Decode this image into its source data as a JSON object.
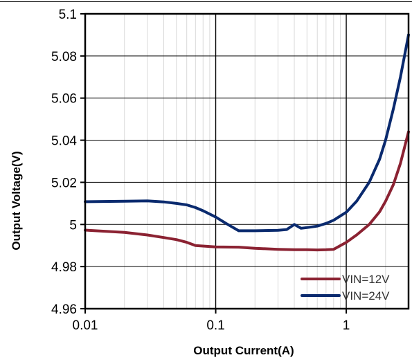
{
  "chart_data": {
    "type": "line",
    "title": "",
    "xlabel": "Output Current(A)",
    "ylabel": "Output Voltage(V)",
    "x_scale": "log",
    "xlim": [
      0.01,
      3
    ],
    "ylim": [
      4.96,
      5.1
    ],
    "x_ticks": [
      0.01,
      0.1,
      1
    ],
    "x_tick_labels": [
      "0.01",
      "0.1",
      "1"
    ],
    "y_ticks": [
      4.96,
      4.98,
      5.0,
      5.02,
      5.04,
      5.06,
      5.08,
      5.1
    ],
    "y_tick_labels": [
      "4.96",
      "4.98",
      "5",
      "5.02",
      "5.04",
      "5.06",
      "5.08",
      "5.1"
    ],
    "grid": "major and minor vertical, major horizontal",
    "legend_position": "bottom-right",
    "series": [
      {
        "name": "VIN=12V",
        "color": "#8B2232",
        "x": [
          0.01,
          0.02,
          0.03,
          0.04,
          0.05,
          0.06,
          0.07,
          0.1,
          0.15,
          0.2,
          0.3,
          0.4,
          0.5,
          0.6,
          0.7,
          0.8,
          1.0,
          1.2,
          1.5,
          1.8,
          2.0,
          2.3,
          2.6,
          3.0
        ],
        "y": [
          4.9973,
          4.9962,
          4.995,
          4.9938,
          4.9928,
          4.9915,
          4.99,
          4.9893,
          4.9892,
          4.9887,
          4.9882,
          4.988,
          4.988,
          4.9879,
          4.988,
          4.9882,
          4.9915,
          4.995,
          5.0,
          5.006,
          5.011,
          5.019,
          5.029,
          5.044
        ]
      },
      {
        "name": "VIN=24V",
        "color": "#0A2A6E",
        "x": [
          0.01,
          0.02,
          0.03,
          0.04,
          0.05,
          0.06,
          0.07,
          0.08,
          0.1,
          0.12,
          0.15,
          0.2,
          0.3,
          0.35,
          0.4,
          0.45,
          0.5,
          0.6,
          0.7,
          0.8,
          1.0,
          1.2,
          1.5,
          1.8,
          2.0,
          2.3,
          2.6,
          3.0
        ],
        "y": [
          5.0108,
          5.011,
          5.0112,
          5.0107,
          5.01,
          5.0093,
          5.008,
          5.0065,
          5.0035,
          5.0005,
          4.997,
          4.997,
          4.9972,
          4.9976,
          5.0,
          4.9982,
          4.9985,
          4.9992,
          5.0005,
          5.002,
          5.0058,
          5.011,
          5.02,
          5.031,
          5.04,
          5.055,
          5.07,
          5.09
        ]
      }
    ]
  }
}
